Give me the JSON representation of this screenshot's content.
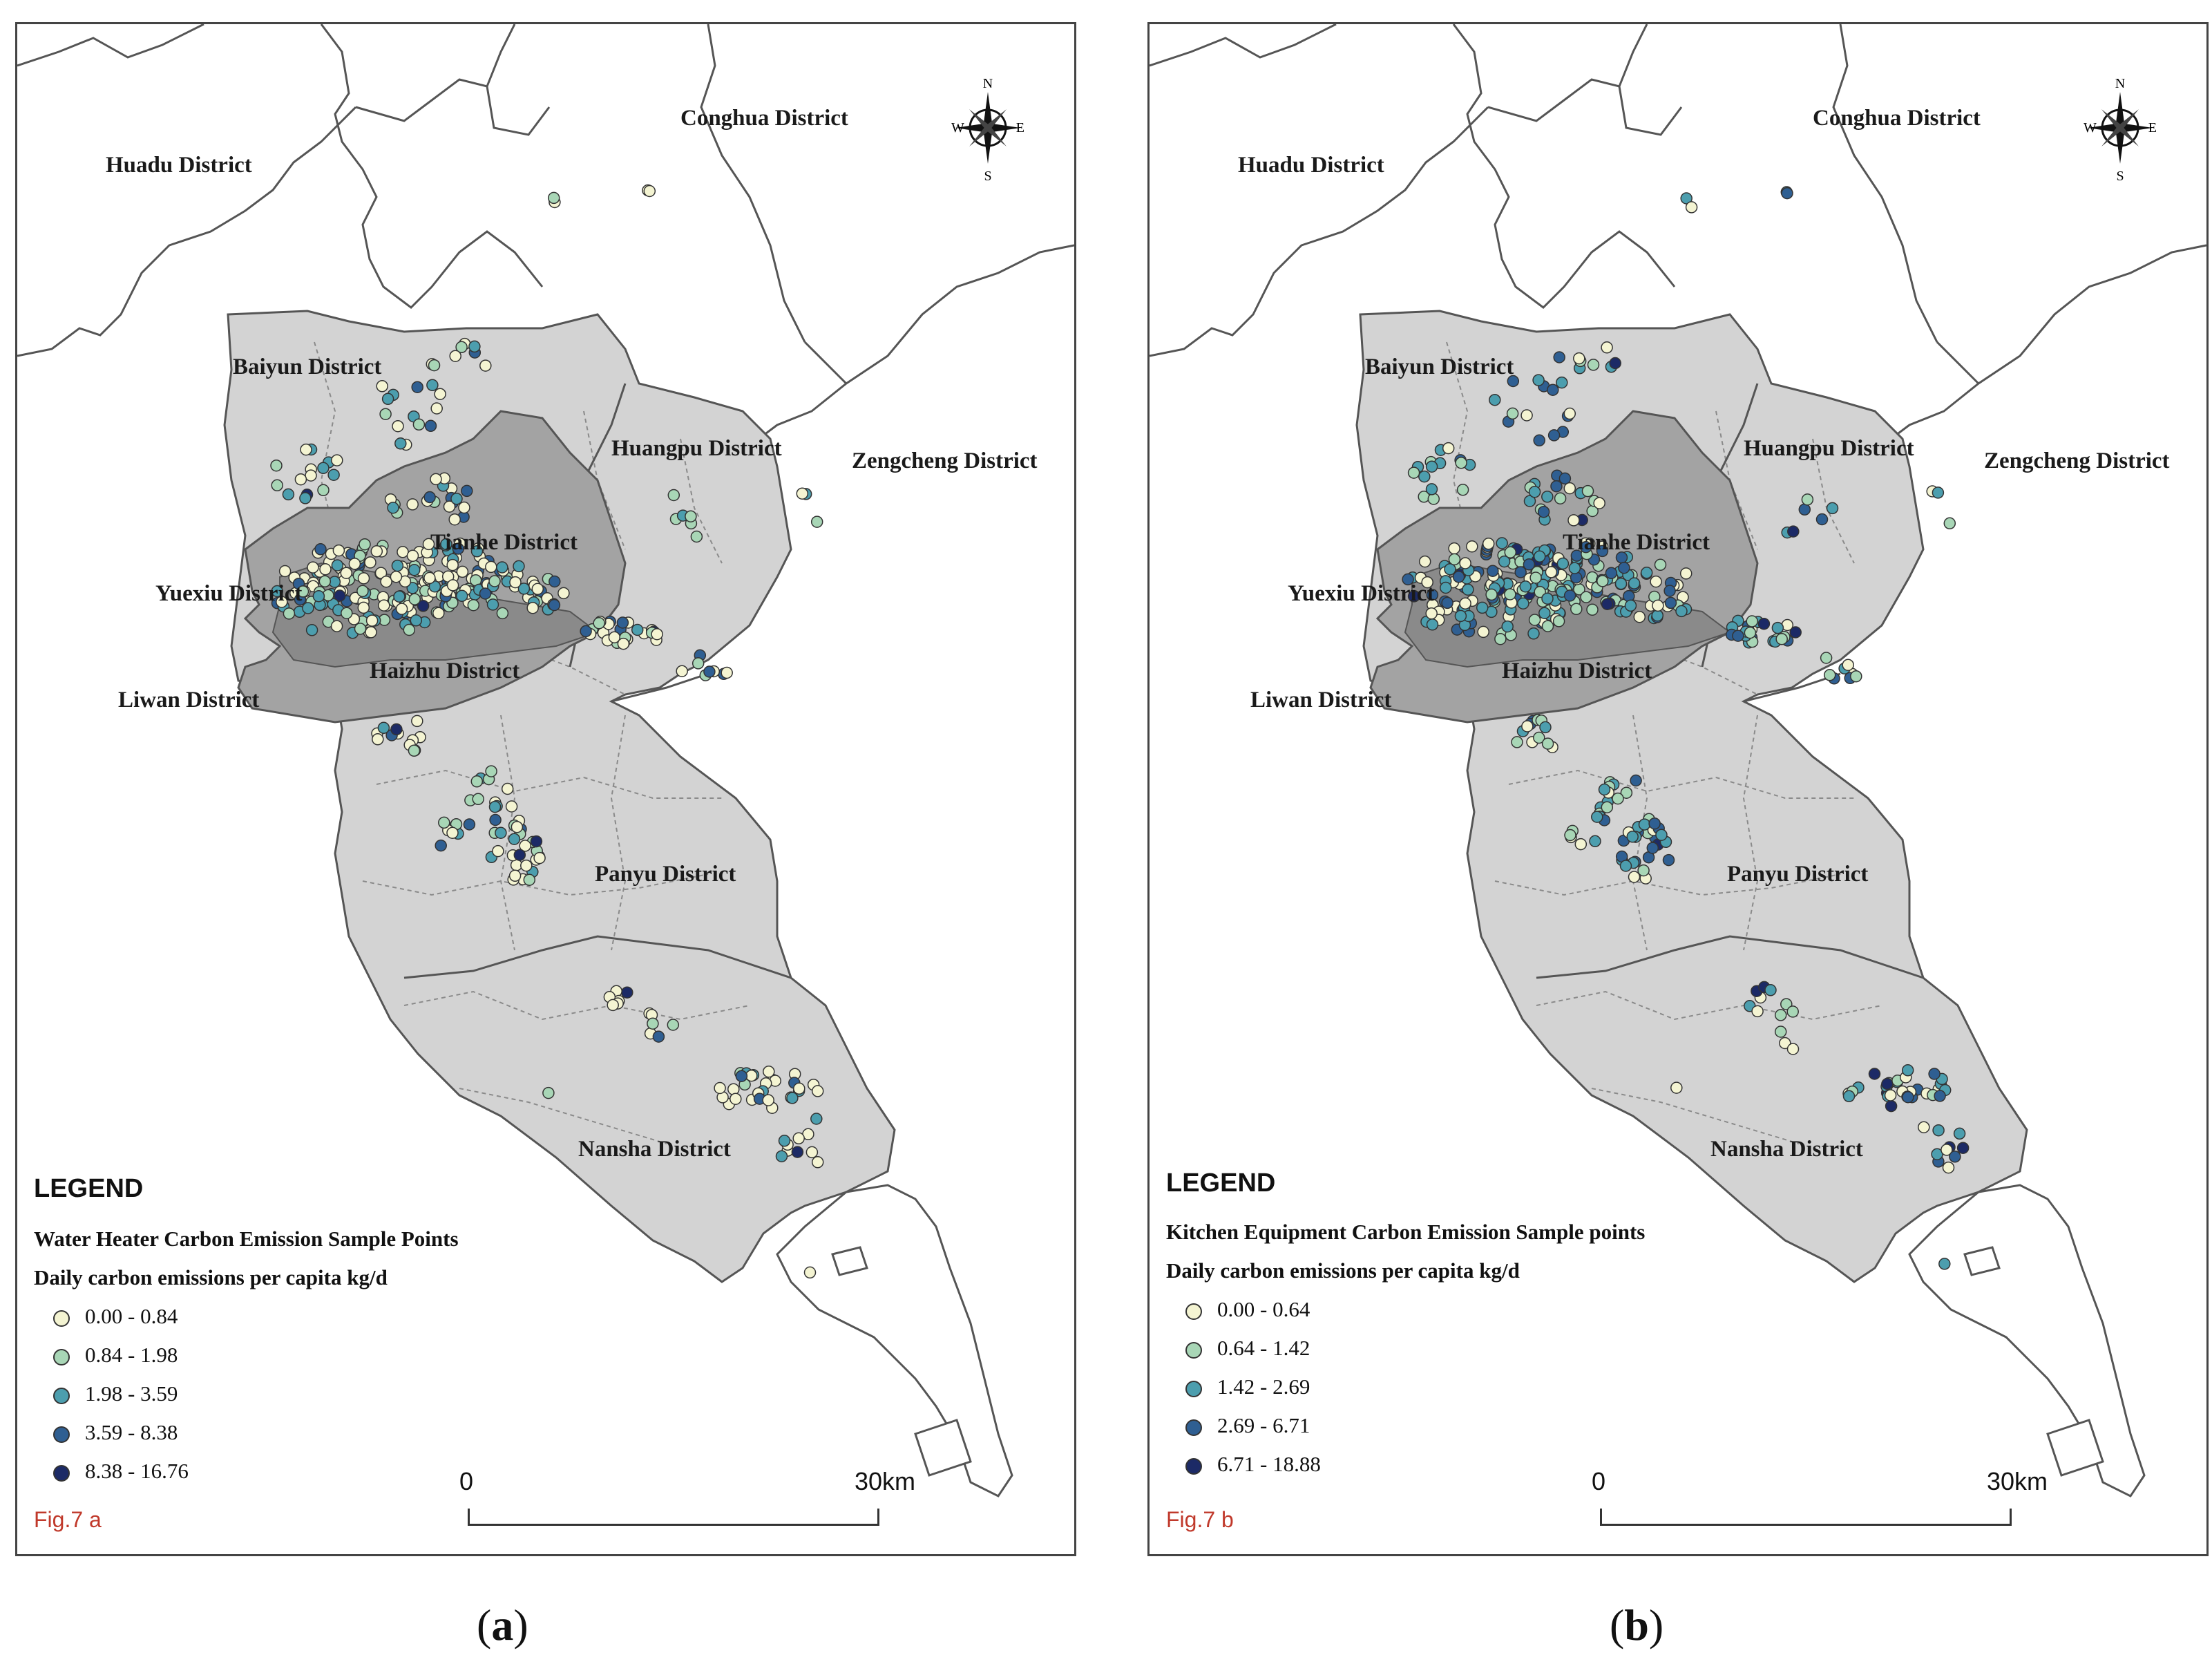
{
  "panels": [
    {
      "id": "a",
      "caption_open": "(",
      "caption_letter": "a",
      "caption_close": ")",
      "fig_label": "Fig.7 a",
      "legend_title": "LEGEND",
      "legend_subtitle": "Water Heater Carbon Emission Sample Points",
      "legend_unit": "Daily carbon emissions per capita kg/d",
      "classes": [
        {
          "label": "0.00 - 0.84",
          "color": "#f4f4d2"
        },
        {
          "label": "0.84 - 1.98",
          "color": "#a8d6b6"
        },
        {
          "label": "1.98 - 3.59",
          "color": "#4c9eae"
        },
        {
          "label": "3.59 - 8.38",
          "color": "#2f5f92"
        },
        {
          "label": "8.38 - 16.76",
          "color": "#1c2a66"
        }
      ],
      "scale_start": "0",
      "scale_end": "30km",
      "seed": 7
    },
    {
      "id": "b",
      "caption_open": "(",
      "caption_letter": "b",
      "caption_close": ")",
      "fig_label": "Fig.7 b",
      "legend_title": "LEGEND",
      "legend_subtitle": "Kitchen Equipment Carbon Emission Sample points",
      "legend_unit": "Daily carbon emissions per capita kg/d",
      "classes": [
        {
          "label": "0.00 - 0.64",
          "color": "#f4f4d2"
        },
        {
          "label": "0.64 - 1.42",
          "color": "#a8d6b6"
        },
        {
          "label": "1.42 - 2.69",
          "color": "#4c9eae"
        },
        {
          "label": "2.69 - 6.71",
          "color": "#2f5f92"
        },
        {
          "label": "6.71 - 18.88",
          "color": "#1c2a66"
        }
      ],
      "scale_start": "0",
      "scale_end": "30km",
      "seed": 13
    }
  ],
  "districts": {
    "huadu": "Huadu District",
    "conghua": "Conghua District",
    "baiyun": "Baiyun District",
    "huangpu": "Huangpu District",
    "zengcheng": "Zengcheng District",
    "tianhe": "Tianhe District",
    "yuexiu": "Yuexiu District",
    "haizhu": "Haizhu District",
    "liwan": "Liwan District",
    "panyu": "Panyu District",
    "nansha": "Nansha District"
  },
  "compass": {
    "n": "N",
    "s": "S",
    "e": "E",
    "w": "W"
  },
  "colors": {
    "outer_region": "#d3d3d3",
    "core_region": "#a3a3a3",
    "center_region": "#8a8a8a",
    "boundary": "#555555"
  }
}
